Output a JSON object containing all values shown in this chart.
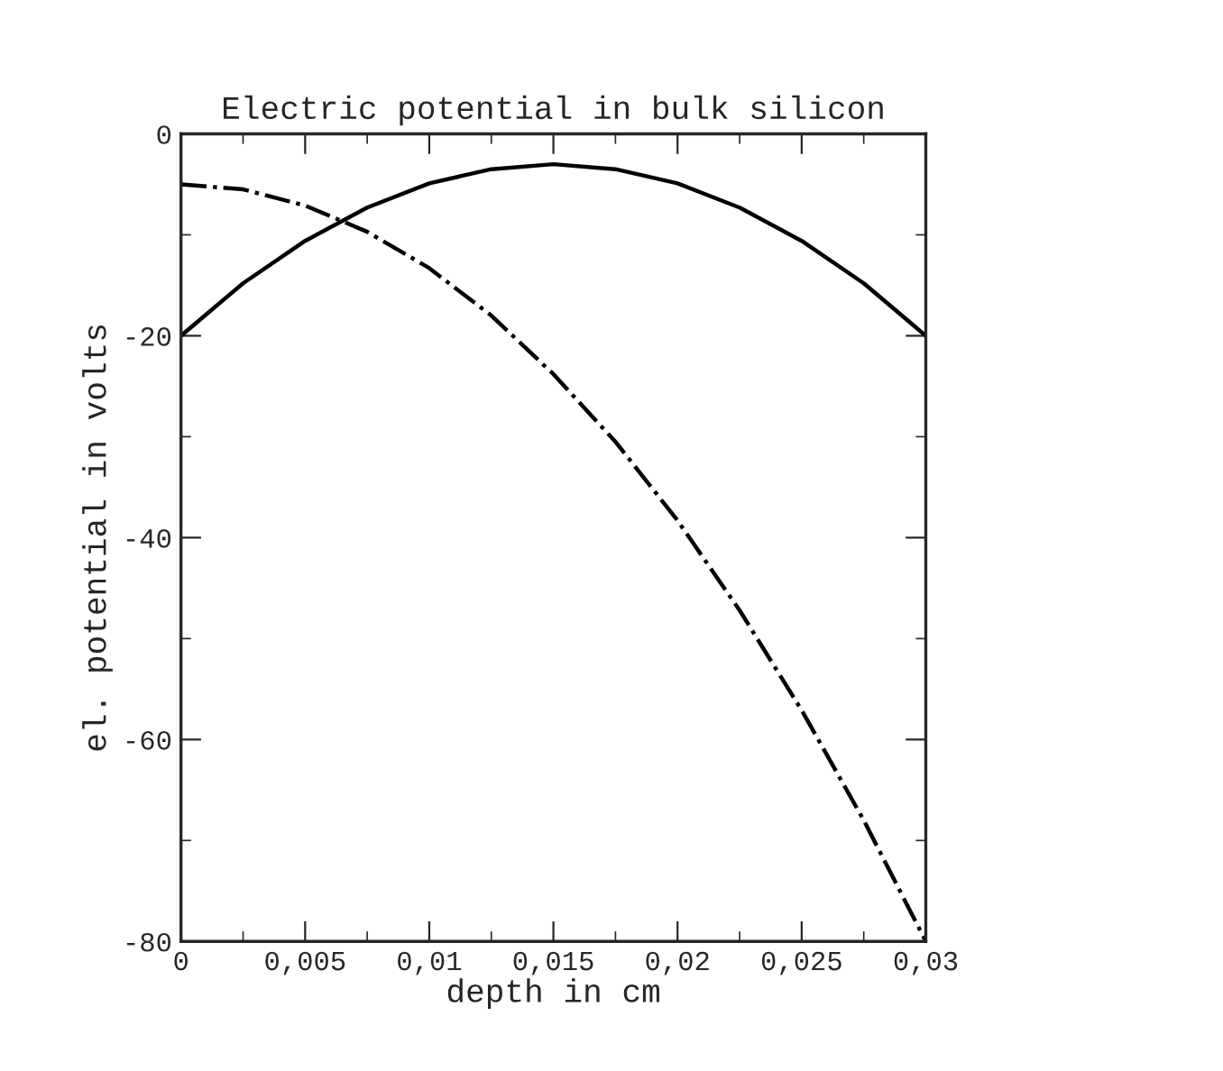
{
  "chart_data": {
    "type": "line",
    "title": "Electric potential in bulk silicon",
    "xlabel": "depth in cm",
    "ylabel": "el. potential in volts",
    "xlim": [
      0,
      0.03
    ],
    "ylim": [
      -80,
      0
    ],
    "xticks": [
      0,
      {
        "value": 0.0025,
        "label": null
      },
      {
        "value": 0.005,
        "label": "0,005"
      },
      {
        "value": 0.0075,
        "label": null
      },
      {
        "value": 0.01,
        "label": "0,01"
      },
      {
        "value": 0.0125,
        "label": null
      },
      {
        "value": 0.015,
        "label": "0,015"
      },
      {
        "value": 0.0175,
        "label": null
      },
      {
        "value": 0.02,
        "label": "0,02"
      },
      {
        "value": 0.0225,
        "label": null
      },
      {
        "value": 0.025,
        "label": "0,025"
      },
      {
        "value": 0.0275,
        "label": null
      },
      {
        "value": 0.03,
        "label": "0,03"
      }
    ],
    "yticks": [
      -80,
      {
        "value": -70,
        "label": null
      },
      -60,
      {
        "value": -50,
        "label": null
      },
      -40,
      {
        "value": -30,
        "label": null
      },
      -20,
      {
        "value": -10,
        "label": null
      },
      0
    ],
    "x": [
      0,
      0.0025,
      0.005,
      0.0075,
      0.01,
      0.0125,
      0.015,
      0.0175,
      0.02,
      0.0225,
      0.025,
      0.0275,
      0.03
    ],
    "grid": false,
    "legend": false,
    "marker": "none",
    "series": [
      {
        "color": "#000000",
        "line_style": "solid",
        "values": [
          -20,
          -14.8,
          -10.6,
          -7.3,
          -4.9,
          -3.5,
          -3,
          -3.5,
          -4.9,
          -7.3,
          -10.6,
          -14.8,
          -20
        ]
      },
      {
        "color": "#000000",
        "line_style": "dashdot",
        "values": [
          -5,
          -5.5,
          -7.1,
          -9.7,
          -13.3,
          -18,
          -23.8,
          -30.5,
          -38.3,
          -47.2,
          -57.1,
          -68,
          -80
        ]
      }
    ]
  }
}
